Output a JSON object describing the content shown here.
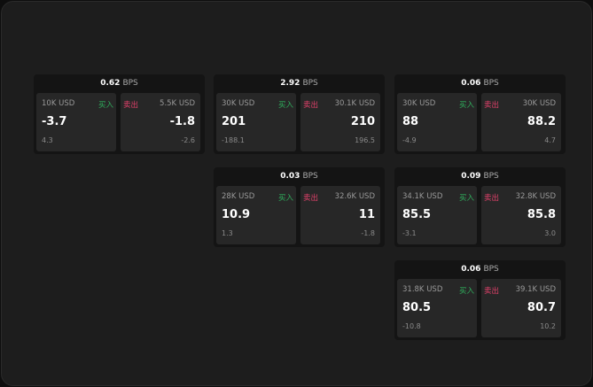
{
  "labels": {
    "unit": "BPS",
    "buy": "买入",
    "sell": "卖出"
  },
  "colors": {
    "buy": "#2fae5c",
    "sell": "#e0406a"
  },
  "cards": [
    {
      "spread": "0.62",
      "buy": {
        "amount": "10K USD",
        "price": "-3.7",
        "change": "4.3"
      },
      "sell": {
        "amount": "5.5K USD",
        "price": "-1.8",
        "change": "-2.6"
      }
    },
    {
      "spread": "2.92",
      "buy": {
        "amount": "30K USD",
        "price": "201",
        "change": "-188.1"
      },
      "sell": {
        "amount": "30.1K USD",
        "price": "210",
        "change": "196.5"
      }
    },
    {
      "spread": "0.06",
      "buy": {
        "amount": "30K USD",
        "price": "88",
        "change": "-4.9"
      },
      "sell": {
        "amount": "30K USD",
        "price": "88.2",
        "change": "4.7"
      }
    },
    {
      "spread": "0.03",
      "buy": {
        "amount": "28K USD",
        "price": "10.9",
        "change": "1.3"
      },
      "sell": {
        "amount": "32.6K USD",
        "price": "11",
        "change": "-1.8"
      }
    },
    {
      "spread": "0.09",
      "buy": {
        "amount": "34.1K USD",
        "price": "85.5",
        "change": "-3.1"
      },
      "sell": {
        "amount": "32.8K USD",
        "price": "85.8",
        "change": "3.0"
      }
    },
    {
      "spread": "0.06",
      "buy": {
        "amount": "31.8K USD",
        "price": "80.5",
        "change": "-10.8"
      },
      "sell": {
        "amount": "39.1K USD",
        "price": "80.7",
        "change": "10.2"
      }
    }
  ]
}
